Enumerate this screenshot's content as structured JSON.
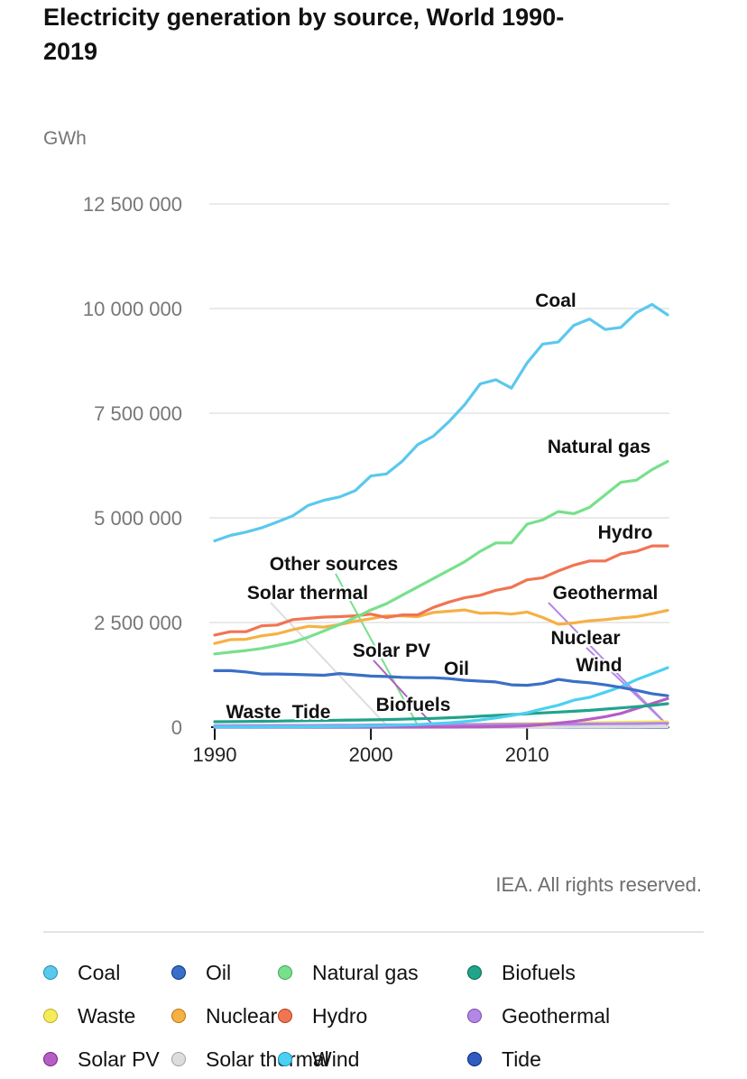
{
  "title": "Electricity generation by source, World 1990-2019",
  "credit": "IEA. All rights reserved.",
  "chart_data": {
    "type": "line",
    "title": "Electricity generation by source, World 1990-2019",
    "ylabel": "GWh",
    "xlabel": "",
    "xlim": [
      1990,
      2019
    ],
    "ylim": [
      0,
      12500000
    ],
    "grid": true,
    "x_ticks": [
      1990,
      2000,
      2010
    ],
    "x_tick_labels": [
      "1990",
      "2000",
      "2010"
    ],
    "y_ticks": [
      0,
      2500000,
      5000000,
      7500000,
      10000000,
      12500000
    ],
    "y_tick_labels": [
      "0",
      "2 500 000",
      "5 000 000",
      "7 500 000",
      "10 000 000",
      "12 500 000"
    ],
    "x": [
      1990,
      1991,
      1992,
      1993,
      1994,
      1995,
      1996,
      1997,
      1998,
      1999,
      2000,
      2001,
      2002,
      2003,
      2004,
      2005,
      2006,
      2007,
      2008,
      2009,
      2010,
      2011,
      2012,
      2013,
      2014,
      2015,
      2016,
      2017,
      2018,
      2019
    ],
    "series": [
      {
        "name": "Coal",
        "color": "#5bc8ee",
        "label": "Coal",
        "values": [
          4450000,
          4580000,
          4660000,
          4760000,
          4900000,
          5050000,
          5300000,
          5420000,
          5500000,
          5650000,
          6000000,
          6050000,
          6350000,
          6750000,
          6950000,
          7300000,
          7700000,
          8200000,
          8300000,
          8100000,
          8700000,
          9150000,
          9200000,
          9600000,
          9750000,
          9500000,
          9550000,
          9900000,
          10100000,
          9850000
        ]
      },
      {
        "name": "Oil",
        "color": "#3a6fc6",
        "label": "Oil",
        "values": [
          1350000,
          1350000,
          1320000,
          1270000,
          1270000,
          1260000,
          1250000,
          1240000,
          1280000,
          1250000,
          1220000,
          1210000,
          1190000,
          1180000,
          1180000,
          1160000,
          1120000,
          1100000,
          1080000,
          1010000,
          1000000,
          1040000,
          1140000,
          1090000,
          1060000,
          1010000,
          950000,
          880000,
          800000,
          750000
        ]
      },
      {
        "name": "Natural gas",
        "color": "#78e08c",
        "label": "Natural gas",
        "values": [
          1750000,
          1790000,
          1830000,
          1880000,
          1950000,
          2030000,
          2150000,
          2300000,
          2450000,
          2620000,
          2800000,
          2950000,
          3150000,
          3350000,
          3550000,
          3750000,
          3950000,
          4200000,
          4400000,
          4400000,
          4850000,
          4950000,
          5150000,
          5100000,
          5250000,
          5550000,
          5850000,
          5900000,
          6150000,
          6350000
        ]
      },
      {
        "name": "Biofuels",
        "color": "#20a48a",
        "label": "Biofuels",
        "values": [
          130000,
          132000,
          136000,
          140000,
          145000,
          150000,
          155000,
          160000,
          165000,
          170000,
          175000,
          180000,
          190000,
          200000,
          210000,
          225000,
          240000,
          260000,
          280000,
          300000,
          320000,
          340000,
          360000,
          380000,
          400000,
          430000,
          460000,
          490000,
          520000,
          560000
        ]
      },
      {
        "name": "Waste",
        "color": "#f6eb5b",
        "label": "Waste",
        "values": [
          20000,
          22000,
          24000,
          26000,
          28000,
          30000,
          33000,
          36000,
          39000,
          42000,
          45000,
          48000,
          52000,
          56000,
          60000,
          64000,
          68000,
          72000,
          77000,
          82000,
          87000,
          92000,
          97000,
          102000,
          107000,
          112000,
          117000,
          122000,
          127000,
          130000
        ]
      },
      {
        "name": "Nuclear",
        "color": "#f5b146",
        "label": "Nuclear",
        "values": [
          2000000,
          2090000,
          2100000,
          2180000,
          2230000,
          2330000,
          2410000,
          2390000,
          2450000,
          2530000,
          2590000,
          2660000,
          2660000,
          2640000,
          2740000,
          2770000,
          2800000,
          2720000,
          2730000,
          2700000,
          2750000,
          2620000,
          2460000,
          2490000,
          2540000,
          2570000,
          2610000,
          2640000,
          2710000,
          2790000
        ]
      },
      {
        "name": "Hydro",
        "color": "#f07553",
        "label": "Hydro",
        "values": [
          2200000,
          2280000,
          2280000,
          2420000,
          2440000,
          2570000,
          2600000,
          2630000,
          2640000,
          2660000,
          2700000,
          2620000,
          2680000,
          2680000,
          2860000,
          2990000,
          3090000,
          3150000,
          3270000,
          3340000,
          3520000,
          3570000,
          3730000,
          3870000,
          3970000,
          3970000,
          4140000,
          4200000,
          4330000,
          4330000
        ]
      },
      {
        "name": "Geothermal",
        "color": "#b387e5",
        "label": "Geothermal",
        "values": [
          36000,
          37000,
          38000,
          39000,
          40000,
          40000,
          42000,
          43000,
          45000,
          48000,
          52000,
          53000,
          54000,
          55000,
          57000,
          58000,
          60000,
          62000,
          64000,
          67000,
          68000,
          69000,
          70000,
          71000,
          77000,
          80000,
          82000,
          85000,
          89000,
          92000
        ]
      },
      {
        "name": "Solar PV",
        "color": "#b55ec4",
        "label": "Solar PV",
        "values": [
          100,
          100,
          200,
          200,
          300,
          300,
          400,
          500,
          600,
          800,
          1000,
          1500,
          2000,
          3000,
          4000,
          5000,
          6000,
          8000,
          12000,
          20000,
          32000,
          62000,
          97000,
          136000,
          190000,
          251000,
          328000,
          443000,
          562000,
          680000
        ]
      },
      {
        "name": "Solar thermal",
        "color": "#dddddd",
        "label": "Solar thermal",
        "values": [
          700,
          800,
          800,
          900,
          900,
          800,
          800,
          800,
          800,
          800,
          800,
          800,
          800,
          800,
          800,
          800,
          800,
          800,
          900,
          1000,
          1700,
          2000,
          4800,
          5500,
          8700,
          9500,
          11000,
          11600,
          12000,
          13000
        ]
      },
      {
        "name": "Wind",
        "color": "#4cd0f2",
        "label": "Wind",
        "values": [
          3900,
          4100,
          4700,
          5700,
          7200,
          8300,
          9800,
          12000,
          16000,
          21000,
          31000,
          38000,
          52000,
          63000,
          85000,
          104000,
          133000,
          171000,
          220000,
          276000,
          342000,
          437000,
          524000,
          645000,
          712000,
          833000,
          961000,
          1134000,
          1273000,
          1420000
        ]
      },
      {
        "name": "Tide",
        "color": "#2e5dbf",
        "label": "Tide",
        "values": [
          600,
          600,
          600,
          600,
          600,
          600,
          600,
          600,
          600,
          600,
          600,
          600,
          600,
          600,
          600,
          600,
          600,
          600,
          600,
          600,
          600,
          600,
          1000,
          1000,
          1000,
          1000,
          1000,
          1000,
          1000,
          1000
        ]
      }
    ],
    "series_labels": [
      {
        "series": "Coal",
        "text": "Coal"
      },
      {
        "series": "Natural gas",
        "text": "Natural gas"
      },
      {
        "series": "Hydro",
        "text": "Hydro"
      },
      {
        "series": "Geothermal",
        "text": "Geothermal"
      },
      {
        "series": "Nuclear",
        "text": "Nuclear"
      },
      {
        "series": "Wind",
        "text": "Wind"
      },
      {
        "series": "Oil",
        "text": "Oil"
      },
      {
        "series": "Solar PV",
        "text": "Solar PV"
      },
      {
        "series": "Biofuels",
        "text": "Biofuels"
      },
      {
        "series": "Other sources",
        "text": "Other sources"
      },
      {
        "series": "Solar thermal",
        "text": "Solar thermal"
      },
      {
        "series": "Waste",
        "text": "Waste"
      },
      {
        "series": "Tide",
        "text": "Tide"
      }
    ]
  },
  "legend": [
    {
      "label": "Coal",
      "color": "#5bc8ee"
    },
    {
      "label": "Oil",
      "color": "#3a6fc6"
    },
    {
      "label": "Natural gas",
      "color": "#78e08c"
    },
    {
      "label": "Biofuels",
      "color": "#20a48a"
    },
    {
      "label": "Waste",
      "color": "#f6eb5b"
    },
    {
      "label": "Nuclear",
      "color": "#f5b146"
    },
    {
      "label": "Hydro",
      "color": "#f07553"
    },
    {
      "label": "Geothermal",
      "color": "#b387e5"
    },
    {
      "label": "Solar PV",
      "color": "#b55ec4"
    },
    {
      "label": "Solar thermal",
      "color": "#dddddd"
    },
    {
      "label": "Wind",
      "color": "#4cd0f2"
    },
    {
      "label": "Tide",
      "color": "#2e5dbf"
    }
  ]
}
